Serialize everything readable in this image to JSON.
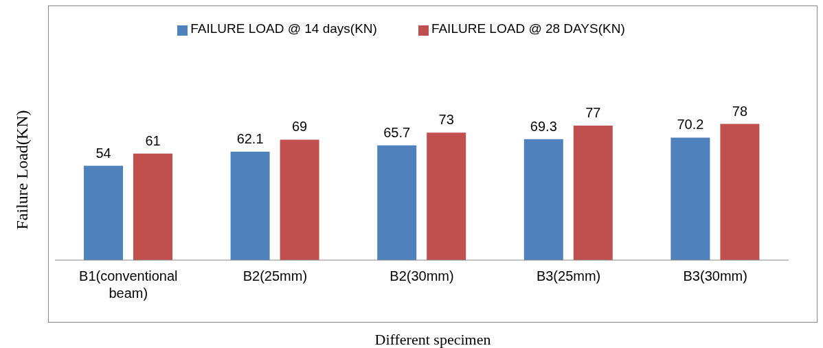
{
  "chart_data": {
    "type": "bar",
    "xlabel": "Different specimen",
    "ylabel": "Failure Load(KN)",
    "categories": [
      "B1(conventional beam)",
      "B2(25mm)",
      "B2(30mm)",
      "B3(25mm)",
      "B3(30mm)"
    ],
    "series": [
      {
        "name": "FAILURE LOAD @ 14 days(KN)",
        "color": "#4f81bd",
        "values": [
          54,
          62.1,
          65.7,
          69.3,
          70.2
        ]
      },
      {
        "name": "FAILURE LOAD @ 28 DAYS(KN)",
        "color": "#c0504d",
        "values": [
          61,
          69,
          73,
          77,
          78
        ]
      }
    ],
    "data_labels": true,
    "legend": "top",
    "grid": false
  }
}
